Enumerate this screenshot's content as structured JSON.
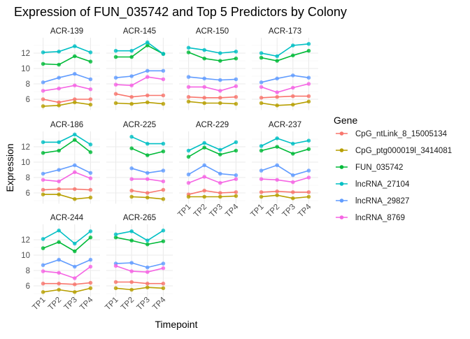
{
  "chart_data": {
    "type": "line",
    "title": "Expression of FUN_035742 and Top 5 Predictors by Colony",
    "xlabel": "Timepoint",
    "ylabel": "Expression",
    "categories": [
      "TP1",
      "TP2",
      "TP3",
      "TP4"
    ],
    "y_ticks": [
      6,
      8,
      10,
      12
    ],
    "ylim": [
      4.6,
      14.0
    ],
    "grid": true,
    "legend": {
      "title": "Gene",
      "placement": "right"
    },
    "series_names": [
      "CpG_ntLink_8_15005134",
      "CpG_ptg000019l_3414081",
      "FUN_035742",
      "lncRNA_27104",
      "lncRNA_29827",
      "lncRNA_8769"
    ],
    "colors": [
      "#F8766D",
      "#B79F00",
      "#00BA38",
      "#00BFC4",
      "#619CFF",
      "#F564E3"
    ],
    "panels": [
      {
        "name": "ACR-139",
        "values": [
          [
            6.0,
            5.6,
            6.0,
            6.0
          ],
          [
            5.1,
            5.2,
            5.6,
            5.3
          ],
          [
            10.6,
            10.5,
            11.6,
            10.9
          ],
          [
            12.1,
            12.2,
            12.9,
            12.1
          ],
          [
            8.2,
            8.8,
            9.3,
            8.6
          ],
          [
            7.1,
            7.4,
            7.8,
            7.3
          ]
        ]
      },
      {
        "name": "ACR-145",
        "values": [
          [
            6.7,
            6.3,
            6.5,
            6.5
          ],
          [
            5.5,
            5.4,
            5.6,
            5.4
          ],
          [
            11.5,
            11.5,
            13.0,
            11.9
          ],
          [
            12.3,
            12.3,
            13.4,
            11.9
          ],
          [
            8.8,
            9.0,
            9.7,
            9.7
          ],
          [
            7.9,
            7.8,
            8.9,
            8.6
          ]
        ]
      },
      {
        "name": "ACR-150",
        "values": [
          [
            6.3,
            6.2,
            6.2,
            6.3
          ],
          [
            5.7,
            5.5,
            5.5,
            5.4
          ],
          [
            12.1,
            11.3,
            11.0,
            11.3
          ],
          [
            12.7,
            12.4,
            12.0,
            12.2
          ],
          [
            8.9,
            8.7,
            8.5,
            8.6
          ],
          [
            7.6,
            7.6,
            7.1,
            7.7
          ]
        ]
      },
      {
        "name": "ACR-173",
        "values": [
          [
            6.2,
            6.3,
            6.4,
            6.4
          ],
          [
            5.5,
            5.2,
            5.3,
            5.7
          ],
          [
            11.4,
            11.0,
            11.7,
            12.3
          ],
          [
            12.0,
            11.6,
            13.0,
            13.2
          ],
          [
            8.2,
            8.7,
            9.1,
            8.8
          ],
          [
            7.6,
            6.9,
            7.5,
            8.0
          ]
        ]
      },
      {
        "name": "ACR-186",
        "values": [
          [
            6.4,
            6.5,
            6.5,
            6.4
          ],
          [
            5.8,
            5.8,
            5.2,
            5.4
          ],
          [
            11.2,
            11.5,
            12.9,
            11.3
          ],
          [
            12.6,
            12.6,
            13.6,
            12.3
          ],
          [
            8.5,
            9.0,
            9.6,
            8.6
          ],
          [
            7.7,
            7.5,
            8.7,
            7.9
          ]
        ]
      },
      {
        "name": "ACR-225",
        "values": [
          [
            null,
            6.3,
            6.0,
            6.4
          ],
          [
            null,
            5.5,
            5.4,
            5.2
          ],
          [
            null,
            11.8,
            10.9,
            11.4
          ],
          [
            null,
            13.3,
            12.4,
            12.4
          ],
          [
            null,
            9.2,
            8.6,
            8.9
          ],
          [
            null,
            7.8,
            7.8,
            7.5
          ]
        ]
      },
      {
        "name": "ACR-229",
        "values": [
          [
            5.8,
            6.3,
            6.0,
            6.1
          ],
          [
            5.5,
            5.5,
            5.5,
            5.6
          ],
          [
            10.7,
            11.9,
            11.0,
            11.5
          ],
          [
            11.5,
            12.5,
            11.6,
            12.6
          ],
          [
            8.4,
            9.6,
            8.5,
            8.3
          ],
          [
            7.3,
            8.1,
            7.3,
            7.8
          ]
        ]
      },
      {
        "name": "ACR-237",
        "values": [
          [
            6.1,
            6.2,
            6.1,
            6.1
          ],
          [
            5.5,
            5.7,
            5.3,
            5.5
          ],
          [
            11.5,
            12.0,
            11.1,
            11.7
          ],
          [
            12.1,
            13.1,
            12.4,
            12.8
          ],
          [
            8.9,
            9.6,
            8.3,
            8.9
          ],
          [
            7.8,
            7.7,
            7.4,
            8.0
          ]
        ]
      },
      {
        "name": "ACR-244",
        "values": [
          [
            6.3,
            6.3,
            6.2,
            6.4
          ],
          [
            5.2,
            5.5,
            5.2,
            5.7
          ],
          [
            10.9,
            11.7,
            10.5,
            12.3
          ],
          [
            12.1,
            13.2,
            11.5,
            13.1
          ],
          [
            8.7,
            9.4,
            8.5,
            9.4
          ],
          [
            7.9,
            7.7,
            7.0,
            8.5
          ]
        ]
      },
      {
        "name": "ACR-265",
        "values": [
          [
            6.5,
            6.5,
            6.3,
            6.3
          ],
          [
            5.7,
            5.5,
            5.8,
            5.7
          ],
          [
            12.3,
            11.9,
            11.4,
            11.8
          ],
          [
            12.7,
            13.1,
            11.9,
            13.2
          ],
          [
            8.9,
            9.0,
            8.4,
            8.9
          ],
          [
            8.6,
            7.9,
            7.8,
            8.3
          ]
        ]
      }
    ]
  }
}
